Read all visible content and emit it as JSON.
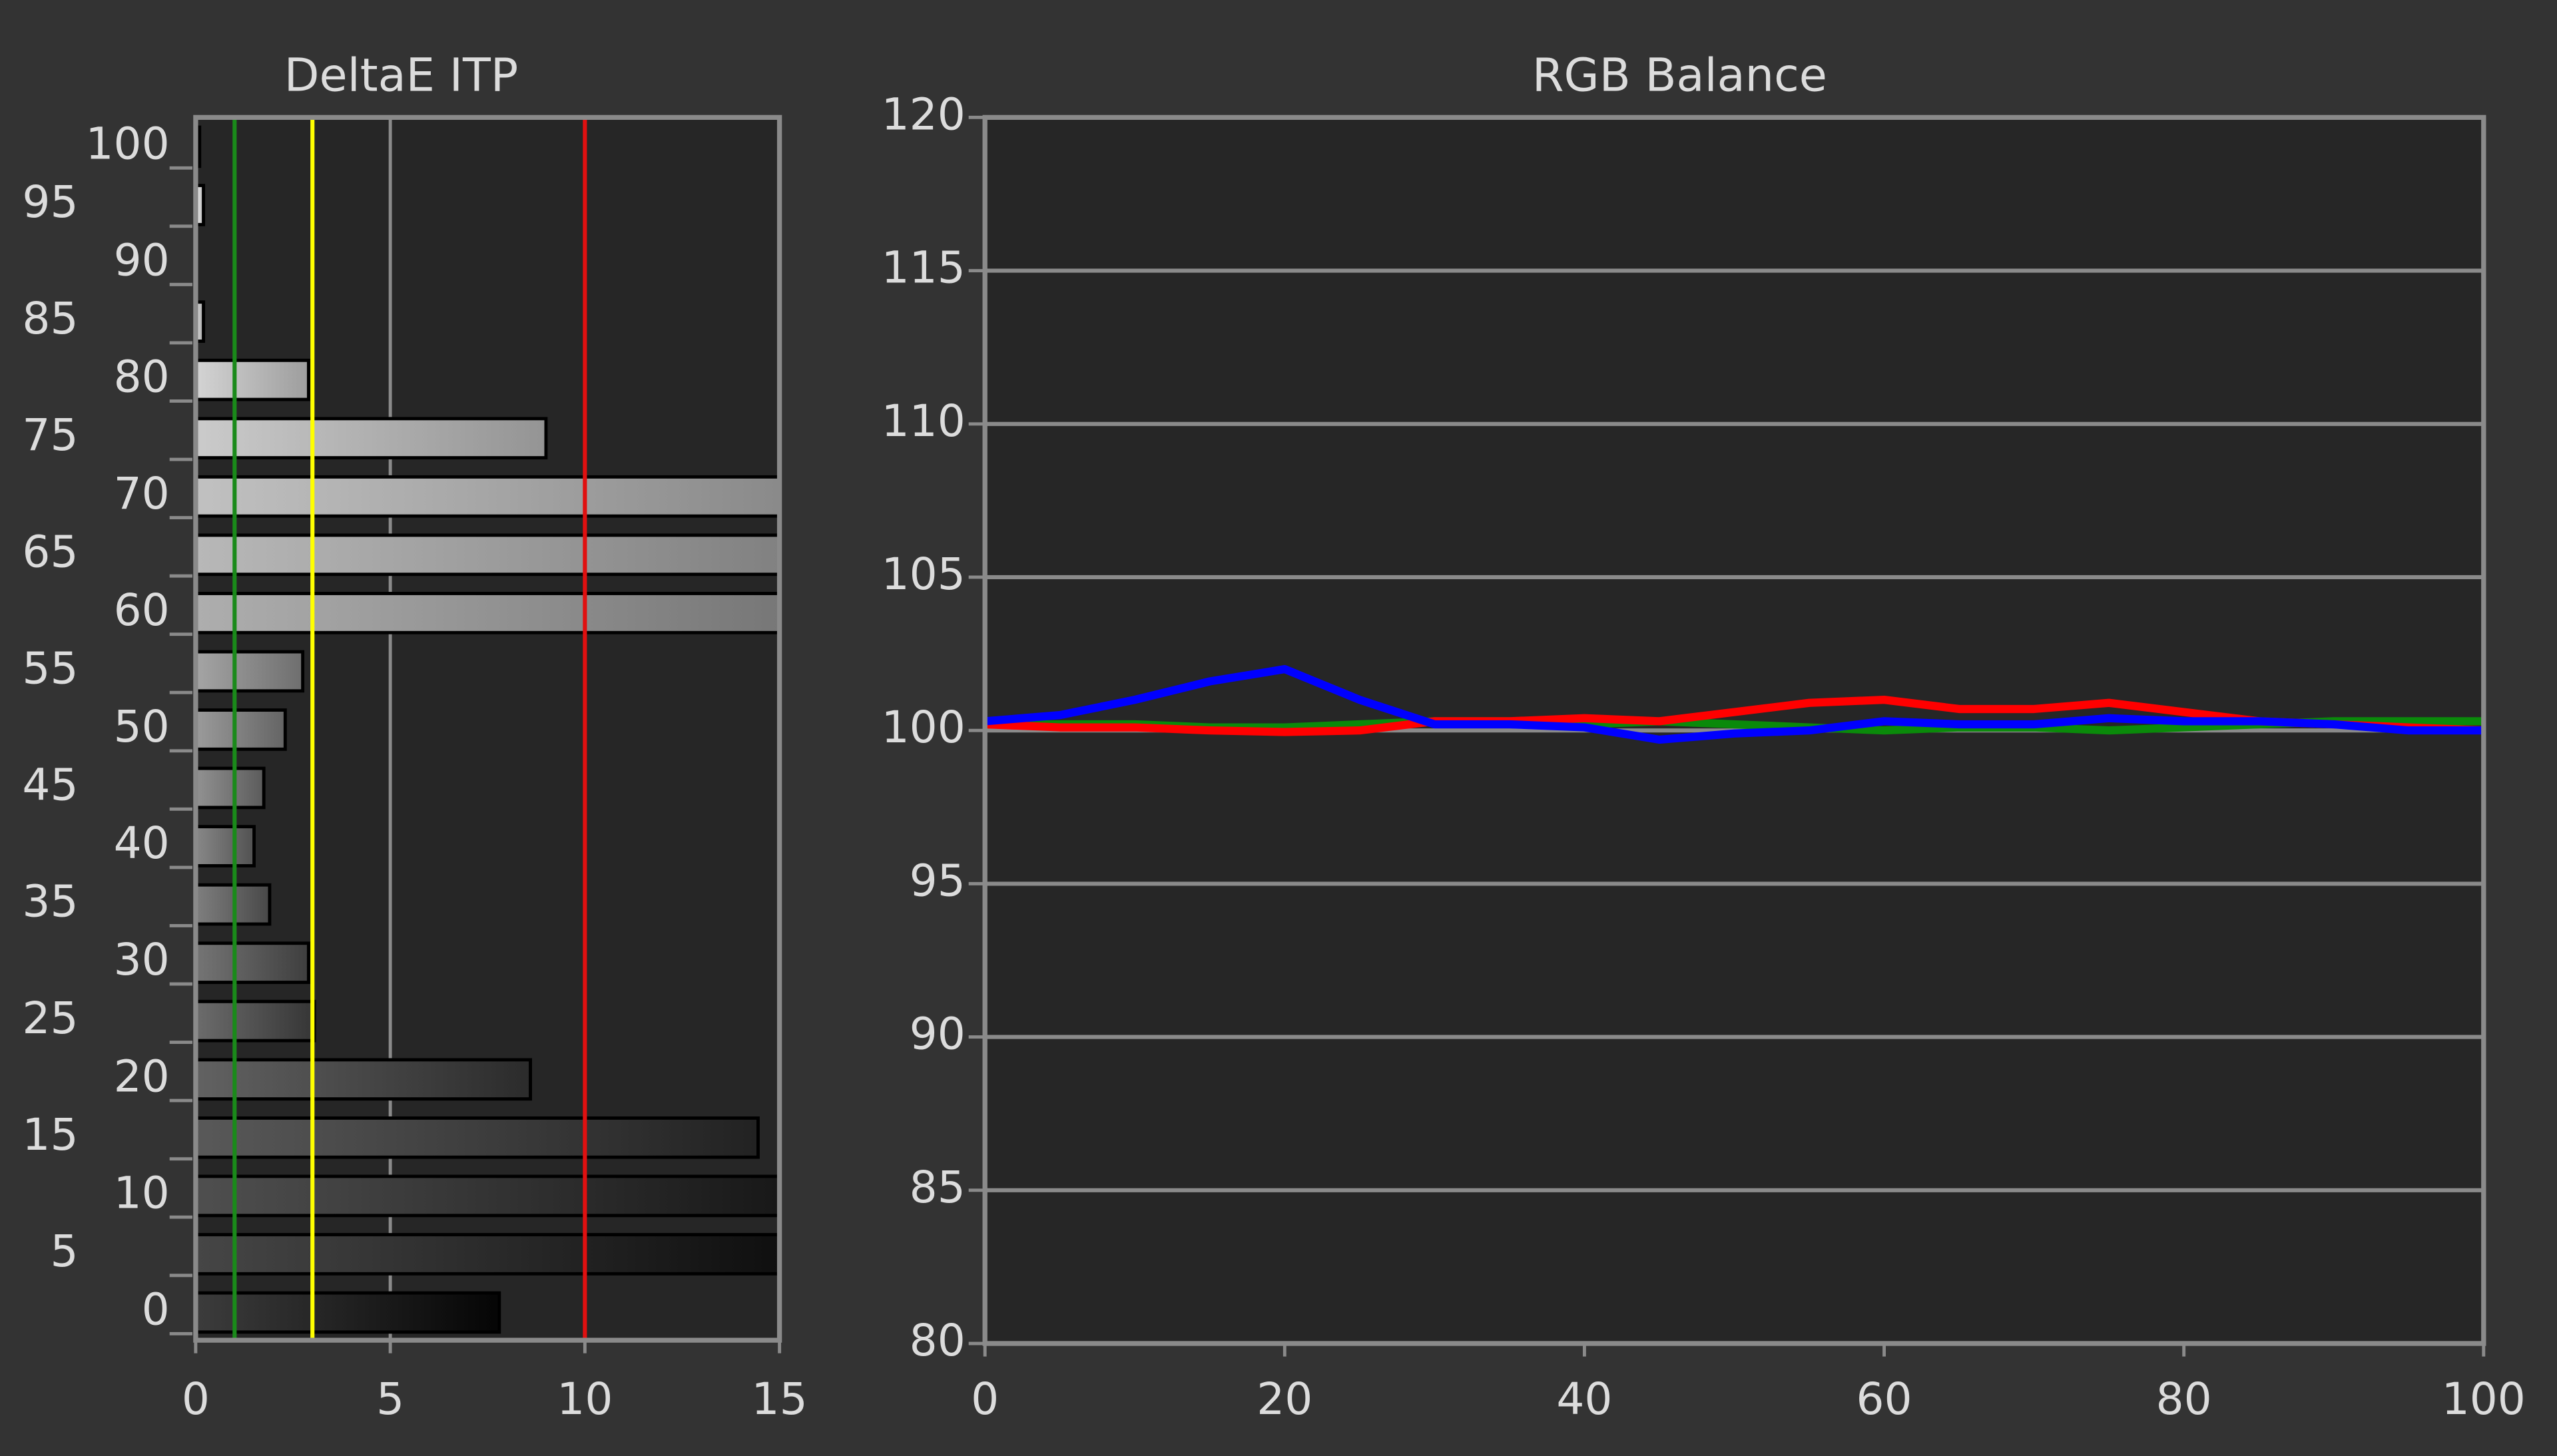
{
  "chart_data": [
    {
      "type": "hbar",
      "title": "DeltaE ITP",
      "categories": [
        "0",
        "5",
        "10",
        "15",
        "20",
        "25",
        "30",
        "35",
        "40",
        "45",
        "50",
        "55",
        "60",
        "65",
        "70",
        "75",
        "80",
        "85",
        "90",
        "95",
        "100"
      ],
      "values": [
        7.8,
        15,
        15,
        14.45,
        8.6,
        3.05,
        2.9,
        1.9,
        1.5,
        1.75,
        2.3,
        2.75,
        15,
        15,
        15,
        9.0,
        2.9,
        0.2,
        0,
        0.2,
        0.1
      ],
      "xlim": [
        0,
        15
      ],
      "xticks": [
        0,
        5,
        10,
        15
      ],
      "grid": true,
      "thresholds": [
        {
          "value": 1,
          "color": "#1a8a1a"
        },
        {
          "value": 3,
          "color": "#ffff00"
        },
        {
          "value": 10,
          "color": "#e01010"
        }
      ]
    },
    {
      "type": "line",
      "title": "RGB Balance",
      "x": [
        0,
        5,
        10,
        15,
        20,
        25,
        30,
        35,
        40,
        45,
        50,
        55,
        60,
        65,
        70,
        75,
        80,
        85,
        90,
        95,
        100
      ],
      "series": [
        {
          "name": "Green",
          "color": "#0a8a0a",
          "values": [
            100.2,
            100.2,
            100.2,
            100.1,
            100.1,
            100.2,
            100.3,
            100.3,
            100.2,
            100.3,
            100.2,
            100.1,
            100.0,
            100.1,
            100.1,
            100.0,
            100.1,
            100.2,
            100.3,
            100.3,
            100.3
          ]
        },
        {
          "name": "Red",
          "color": "#ff0000",
          "values": [
            100.2,
            100.1,
            100.1,
            100.0,
            99.95,
            100.0,
            100.3,
            100.3,
            100.4,
            100.3,
            100.6,
            100.9,
            101.0,
            100.7,
            100.7,
            100.9,
            100.6,
            100.3,
            100.2,
            100.1,
            100.0
          ]
        },
        {
          "name": "Blue",
          "color": "#0000ff",
          "values": [
            100.3,
            100.5,
            101.0,
            101.6,
            102.0,
            101.0,
            100.2,
            100.2,
            100.1,
            99.7,
            99.9,
            100.0,
            100.3,
            100.2,
            100.2,
            100.4,
            100.3,
            100.3,
            100.2,
            100.0,
            100.0
          ]
        }
      ],
      "xlim": [
        0,
        100
      ],
      "xticks": [
        0,
        20,
        40,
        60,
        80,
        100
      ],
      "ylim": [
        80,
        120
      ],
      "yticks": [
        80,
        85,
        90,
        95,
        100,
        105,
        110,
        115,
        120
      ],
      "grid": true
    }
  ]
}
